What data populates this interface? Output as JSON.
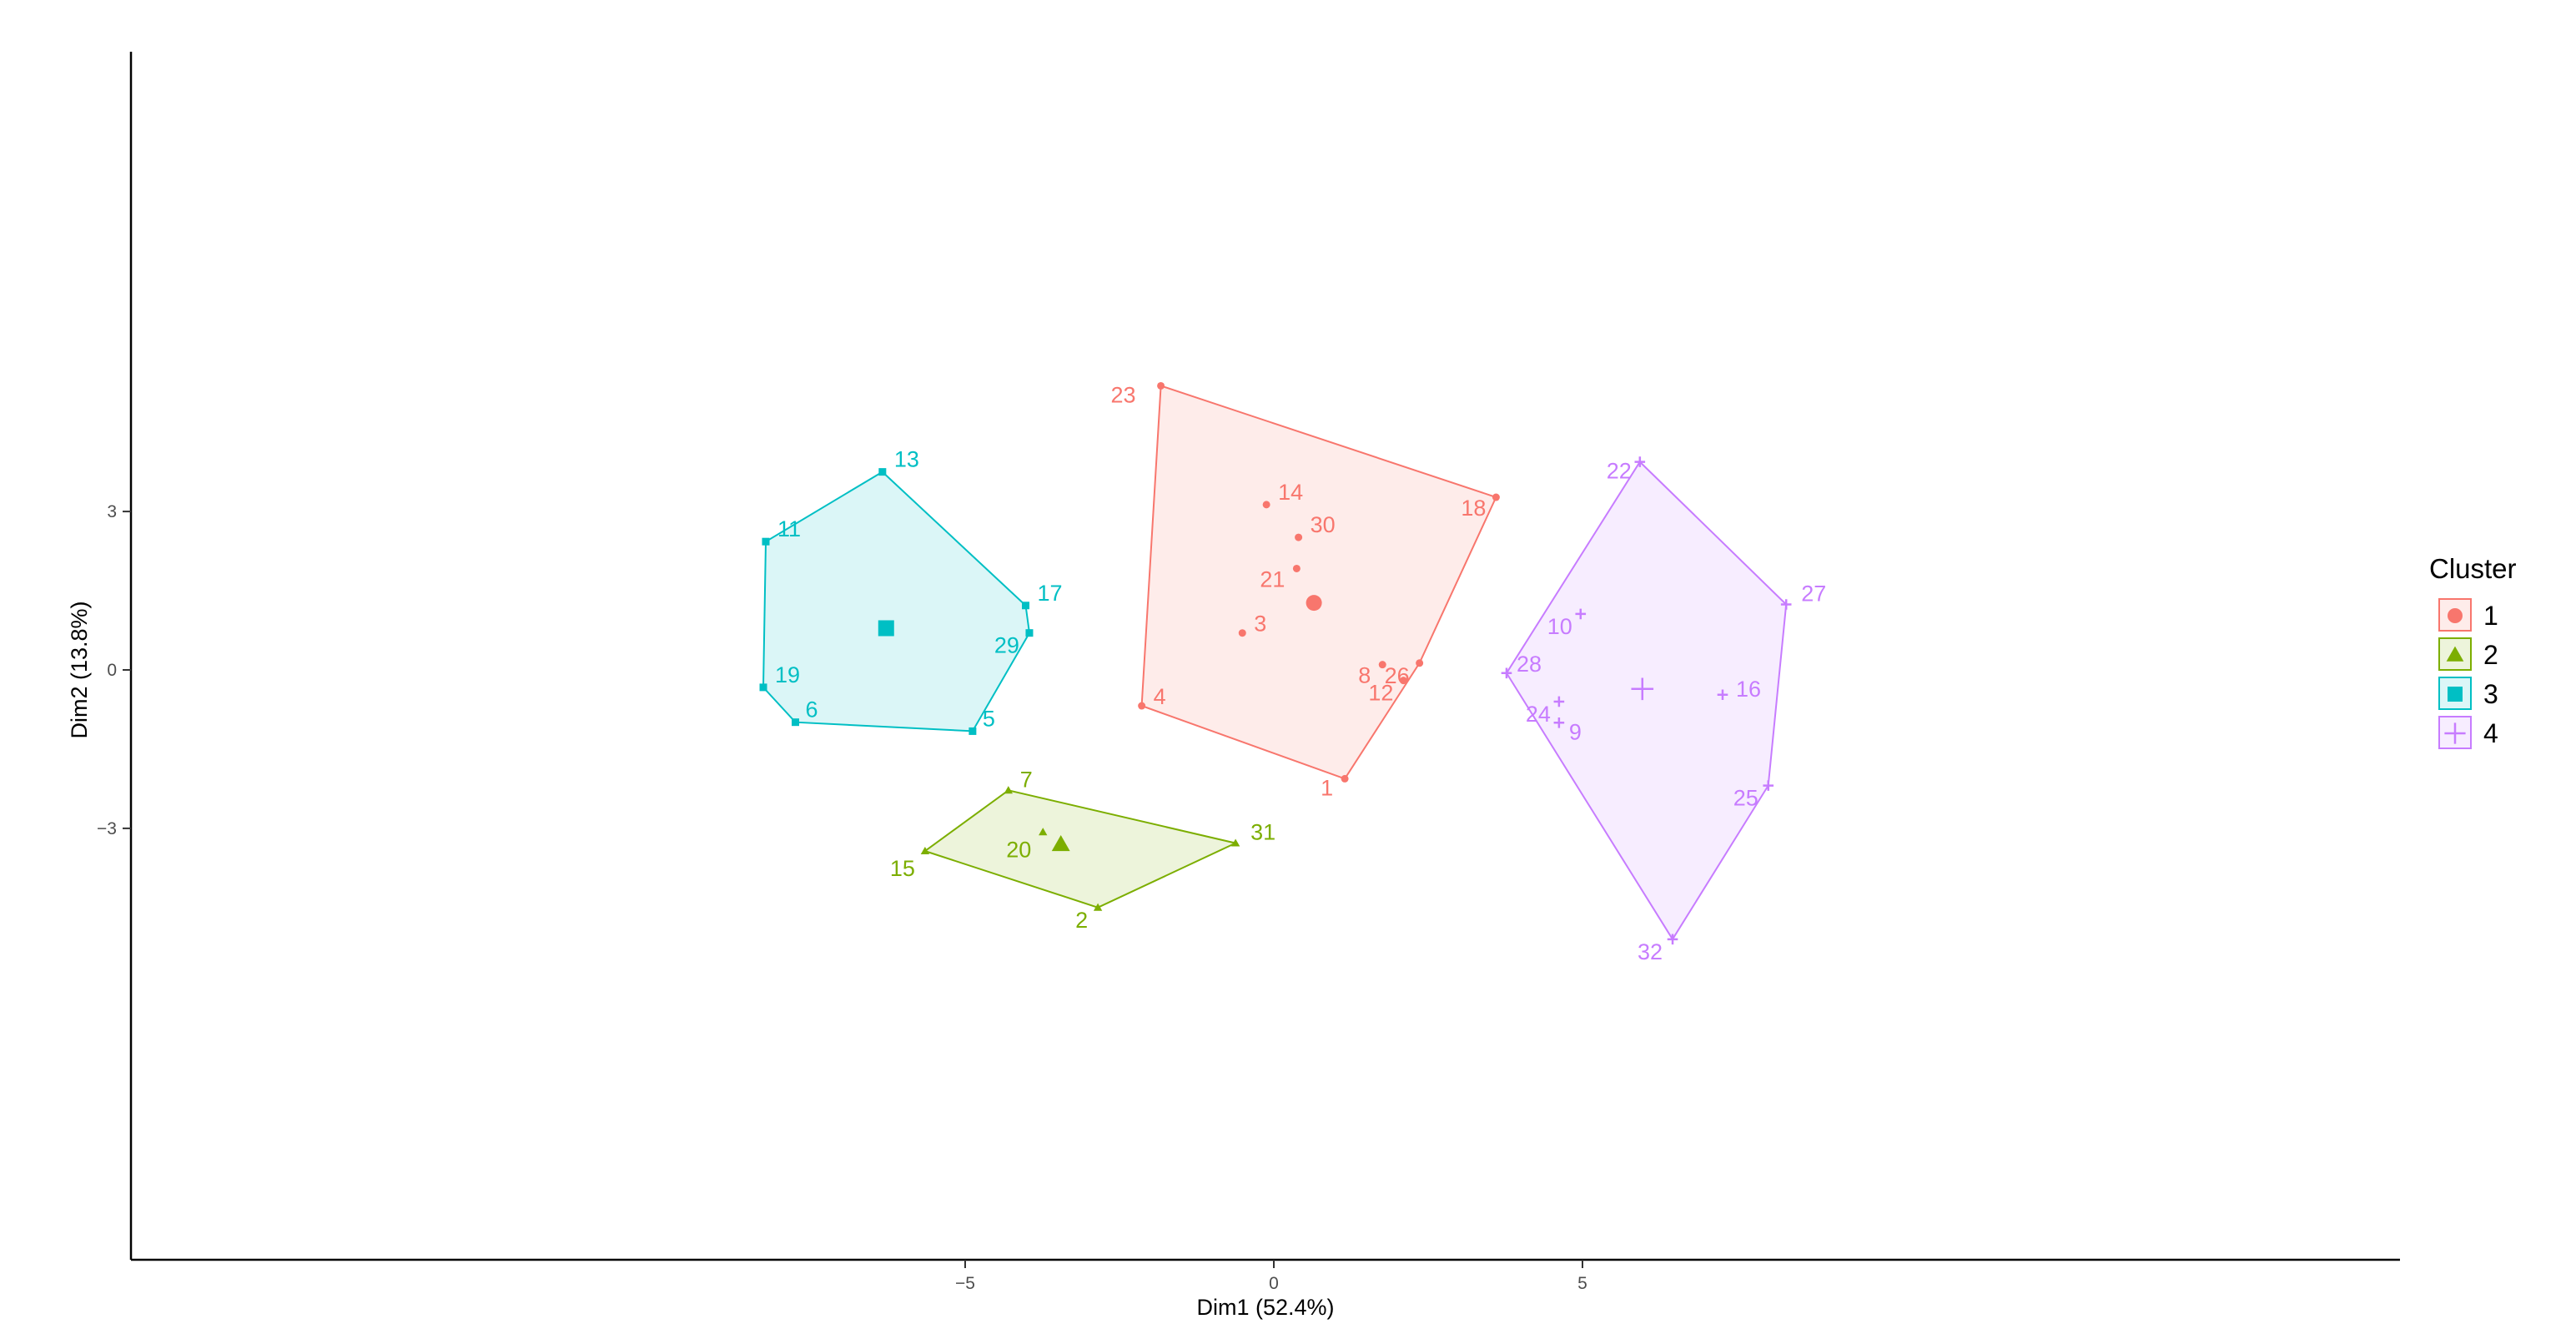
{
  "chart_data": {
    "type": "scatter",
    "title": "",
    "xlabel": "Dim1 (52.4%)",
    "ylabel": "Dim2 (13.8%)",
    "xlim": [
      -9.3,
      9.1
    ],
    "ylim": [
      -5.6,
      5.6
    ],
    "x_ticks": [
      -5,
      0,
      5
    ],
    "y_ticks": [
      -3,
      0,
      3
    ],
    "grid": false,
    "legend_title": "Cluster",
    "legend_position": "right",
    "clusters": [
      {
        "name": "1",
        "color": "#F8766D",
        "shape": "circle",
        "center": [
          0.65,
          1.27
        ],
        "hull": [
          "23",
          "18",
          "26",
          "1",
          "4"
        ],
        "points": [
          {
            "label": "23",
            "x": -1.83,
            "y": 5.38
          },
          {
            "label": "18",
            "x": 3.6,
            "y": 3.27
          },
          {
            "label": "14",
            "x": -0.12,
            "y": 3.13
          },
          {
            "label": "30",
            "x": 0.4,
            "y": 2.51
          },
          {
            "label": "21",
            "x": 0.37,
            "y": 1.92
          },
          {
            "label": "3",
            "x": -0.51,
            "y": 0.7
          },
          {
            "label": "26",
            "x": 2.36,
            "y": 0.13
          },
          {
            "label": "8",
            "x": 1.76,
            "y": 0.1
          },
          {
            "label": "12",
            "x": 2.1,
            "y": -0.2
          },
          {
            "label": "4",
            "x": -2.14,
            "y": -0.68
          },
          {
            "label": "1",
            "x": 1.15,
            "y": -2.06
          }
        ]
      },
      {
        "name": "2",
        "color": "#7CAE00",
        "shape": "triangle",
        "center": [
          -3.45,
          -3.3
        ],
        "hull": [
          "7",
          "31",
          "2",
          "15"
        ],
        "points": [
          {
            "label": "7",
            "x": -4.3,
            "y": -2.28
          },
          {
            "label": "20",
            "x": -3.74,
            "y": -3.07
          },
          {
            "label": "31",
            "x": -0.62,
            "y": -3.28
          },
          {
            "label": "15",
            "x": -5.65,
            "y": -3.43
          },
          {
            "label": "2",
            "x": -2.85,
            "y": -4.5
          }
        ]
      },
      {
        "name": "3",
        "color": "#00BFC4",
        "shape": "square",
        "center": [
          -6.28,
          0.79
        ],
        "hull": [
          "13",
          "17",
          "29",
          "5",
          "6",
          "19",
          "11"
        ],
        "points": [
          {
            "label": "13",
            "x": -6.34,
            "y": 3.75
          },
          {
            "label": "11",
            "x": -8.23,
            "y": 2.43
          },
          {
            "label": "17",
            "x": -4.02,
            "y": 1.22
          },
          {
            "label": "29",
            "x": -3.96,
            "y": 0.7
          },
          {
            "label": "19",
            "x": -8.27,
            "y": -0.33
          },
          {
            "label": "6",
            "x": -7.75,
            "y": -0.99
          },
          {
            "label": "5",
            "x": -4.88,
            "y": -1.16
          }
        ]
      },
      {
        "name": "4",
        "color": "#C77CFF",
        "shape": "plus",
        "center": [
          5.97,
          -0.36
        ],
        "hull": [
          "22",
          "27",
          "25",
          "32",
          "28"
        ],
        "points": [
          {
            "label": "22",
            "x": 5.93,
            "y": 3.94
          },
          {
            "label": "27",
            "x": 8.3,
            "y": 1.24
          },
          {
            "label": "10",
            "x": 4.97,
            "y": 1.06
          },
          {
            "label": "28",
            "x": 3.77,
            "y": -0.06
          },
          {
            "label": "24",
            "x": 4.62,
            "y": -0.6
          },
          {
            "label": "16",
            "x": 7.27,
            "y": -0.47
          },
          {
            "label": "9",
            "x": 4.62,
            "y": -1.0
          },
          {
            "label": "25",
            "x": 8.01,
            "y": -2.19
          },
          {
            "label": "32",
            "x": 6.46,
            "y": -5.1
          }
        ]
      }
    ]
  }
}
